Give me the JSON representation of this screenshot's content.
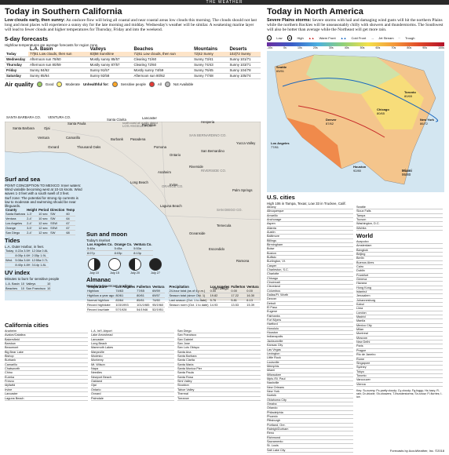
{
  "header": {
    "band": "THE WEATHER"
  },
  "socal": {
    "title": "Today in Southern California",
    "lead_bold": "Low clouds early, then sunny:",
    "lead": "An onshore flow will bring all coastal and near coastal areas low clouds this morning. The clouds should not last long and most places will experience a sunny sky for the late morning and midday. Wednesday's weather will be similar. A weakening marine layer will lead to fewer clouds and higher temperatures for Thursday, Friday and into the weekend."
  },
  "forecast": {
    "title": "5-day forecasts",
    "note": "High/low temperatures are average forecasts for region zone.",
    "columns": [
      "L.A. Basin",
      "Valleys",
      "Beaches",
      "Mountains",
      "Deserts"
    ],
    "today_values": [
      "77|61",
      "83|58",
      "71|61",
      "72|42",
      "102|72"
    ],
    "today_desc": [
      "Low clouds, then sun",
      "Sunshine",
      "Low clouds, then sun",
      "Sunny",
      "Sunny"
    ],
    "rows": [
      {
        "day": "Wednesday",
        "cells": [
          "Afternoon sun 78/60",
          "Mostly sunny 85/57",
          "Clearing 71/60",
          "Sunny 73/41",
          "Sunny 101/71"
        ]
      },
      {
        "day": "Thursday",
        "cells": [
          "Afternoon sun 80/59",
          "Mostly sunny 87/57",
          "Clearing 72/60",
          "Sunny 74/43",
          "Sunny 103/71"
        ]
      },
      {
        "day": "Friday",
        "cells": [
          "Sunny 84/62",
          "Sunny 91/57",
          "Mostly sunny 74/59",
          "Sunny 76/45",
          "Sunny 104/78"
        ]
      },
      {
        "day": "Saturday",
        "cells": [
          "Sunny 85/64",
          "Sunny 92/58",
          "Afternoon sun 80/62",
          "Sunny 77/48",
          "Sunny 105/74"
        ]
      }
    ]
  },
  "air": {
    "title": "Air quality",
    "legend": [
      "Good",
      "Moderate",
      "Unhealthful for:",
      "Sensitive people",
      "All",
      "Not Available"
    ],
    "source": "South Coast Air Quality Management District forecasts air quality"
  },
  "map_labels": [
    "SANTA BARBARA CO.",
    "VENTURA CO.",
    "LOS ANGELES CO.",
    "SAN BERNARDINO CO.",
    "RIVERSIDE CO.",
    "ORANGE CO.",
    "SAN DIEGO CO.",
    "Santa Barbara",
    "Ojai",
    "Santa Paula",
    "Ventura",
    "Oxnard",
    "Camarillo",
    "Thousand Oaks",
    "Santa Clarita",
    "Lancaster",
    "Palmdale",
    "Hesperia",
    "Burbank",
    "Pasadena",
    "Pomona",
    "Ontario",
    "San Bernardino",
    "Yucca Valley",
    "Riverside",
    "Palm Springs",
    "Long Beach",
    "Anaheim",
    "Irvine",
    "Laguna Beach",
    "Oceanside",
    "Escondido",
    "San Diego",
    "Ramona",
    "Temecula"
  ],
  "surf": {
    "title": "Surf and sea",
    "text": "POINT CONCEPTION TO MEXICO: Inner waters: Wind variable becoming west at 10-15 knots. Wind waves 1-3 feet with a south swell of 3 feet.",
    "temps_text": "Surf zone: The potential for strong rip currents is low to moderate and swimming should be near lifeguards.",
    "header": [
      "County",
      "Height",
      "Period",
      "Direction",
      "Temp"
    ],
    "rows": [
      [
        "Santa Barbara",
        "1-3'",
        "10 sec",
        "SW",
        "60"
      ],
      [
        "Ventura",
        "2-4'",
        "10 sec",
        "SW",
        "64"
      ],
      [
        "Los Angeles",
        "2-4'",
        "12 sec",
        "SSW",
        "67"
      ],
      [
        "Orange",
        "3-5'",
        "12 sec",
        "SSW",
        "67"
      ],
      [
        "San Diego",
        "2-4'",
        "12 sec",
        "SW",
        "68"
      ]
    ]
  },
  "tides": {
    "title": "Tides",
    "note": "L.A. Outer Harbor, in feet.",
    "rows": [
      [
        "Today",
        "4:22a 3.5H",
        "12:34a 0.8L"
      ],
      [
        "",
        "8:05p 4.6H",
        "2:35p 1.9L"
      ],
      [
        "Wed.",
        "5:08a 3.6H",
        "12:55a 0.7L"
      ],
      [
        "",
        "8:40p 4.8H",
        "3:14p 1.8L"
      ]
    ]
  },
  "uv": {
    "title": "UV index",
    "note": "Minutes to burn for sensitive people",
    "rows": [
      [
        "L.A. Basin",
        "10"
      ],
      [
        "Valleys",
        "10"
      ],
      [
        "Beaches",
        "10"
      ],
      [
        "San Francisco",
        "10"
      ]
    ]
  },
  "sunmoon": {
    "title": "Sun and moon",
    "today": "Today's rise/set",
    "cities": [
      "Los Angeles Co.",
      "Orange Co.",
      "Ventura Co."
    ],
    "sunrise": [
      "5:48a",
      "5:45a",
      "5:53a"
    ],
    "sunset": [
      "8:07p",
      "8:03p",
      "8:13p"
    ],
    "phases": [
      "July 10",
      "July 15",
      "July 20",
      "July 27"
    ]
  },
  "almanac": {
    "title": "Almanac",
    "note": "Monday's Downtown readings",
    "header": [
      "Temperature",
      "Los Angeles",
      "Fullerton",
      "Ventura"
    ],
    "rows": [
      [
        "High/low",
        "74/63",
        "77/65",
        "69/59"
      ],
      [
        "High/low a year ago",
        "80/61",
        "80/61",
        "69/57"
      ],
      [
        "Normal high/low",
        "83/64",
        "85/61",
        "74/60"
      ],
      [
        "Record high/date",
        "103/1993",
        "101/1985",
        "95/1960"
      ],
      [
        "Record low/date",
        "57/1928",
        "54/1946",
        "52/1951"
      ]
    ],
    "precip_header": [
      "Precipitation",
      "Los Angeles",
      "Fullerton",
      "Ventura"
    ],
    "precip_rows": [
      [
        "24-hour total (as of 4 p.m.)",
        "0.00",
        "0.00",
        "0.00"
      ],
      [
        "Season total (since Oct. 1)",
        "19.82",
        "17.22",
        "16.30"
      ],
      [
        "Last season (Oct. 1 to date)",
        "5.76",
        "5.81",
        "6.13"
      ],
      [
        "Season norm (Oct. 1 to date)",
        "14.93",
        "13.53",
        "15.39"
      ]
    ]
  },
  "ca_cities": {
    "title": "California cities",
    "header": [
      "City",
      "Monday Hi Lo Prcp.",
      "Today Hi Lo",
      "Wed. Hi Lo"
    ],
    "col1": [
      "Anaheim",
      "Avalon/Catalina",
      "Bakersfield",
      "Barstow",
      "Beaumont",
      "Big Bear Lake",
      "Bishop",
      "Burbank",
      "Camarillo",
      "Chatsworth",
      "Chino",
      "Eureka",
      "Fresno",
      "Idyllwild",
      "Irvine",
      "Lancaster",
      "Laguna Beach"
    ],
    "col2": [
      "L.A. Int'l. Airport",
      "Lake Arrowhead",
      "Lancaster",
      "Long Beach",
      "Mammoth Lakes",
      "Marysville",
      "Modesto",
      "Monterey",
      "Mt. Wilson",
      "Napa",
      "Needles",
      "Newport Beach",
      "Oakland",
      "Ojai",
      "Ontario",
      "Oxnard",
      "Palmdale"
    ],
    "col3": [
      "San Diego",
      "San Francisco",
      "San Gabriel",
      "San Jose",
      "San Luis Obispo",
      "Santa Ana",
      "Santa Barbara",
      "Santa Clarita",
      "Santa Maria",
      "Santa Monica Pier",
      "Santa Paula",
      "Santa Rosa",
      "Simi Valley",
      "Stockton",
      "Tahoe Valley",
      "Thermal",
      "Torrance"
    ]
  },
  "nation": {
    "title": "Today in North America",
    "lead_bold": "Severe Plains storms:",
    "lead": "Severe storms with hail and damaging wind gusts will hit the northern Plains while the northern Rockies will be unseasonably chilly with showers and thunderstorms. The Southwest will also be hotter than average while the Northeast will get more rain.",
    "legend": [
      "Low",
      "High",
      "Warm Front",
      "Cold Front",
      "Jet Stream",
      "Trough"
    ],
    "temp_scale": [
      "-10s",
      "0s",
      "10s",
      "20s",
      "30s",
      "40s",
      "50s",
      "60s",
      "70s",
      "80s",
      "90s",
      "100s"
    ],
    "map_cities": [
      {
        "name": "Seattle",
        "temps": "65/51"
      },
      {
        "name": "Los Angeles",
        "temps": "77/61"
      },
      {
        "name": "Houston",
        "temps": "92/80"
      },
      {
        "name": "Miami",
        "temps": "95/80"
      },
      {
        "name": "Chicago",
        "temps": "80/65"
      },
      {
        "name": "Toronto",
        "temps": "80/65"
      },
      {
        "name": "New York",
        "temps": "86/72"
      },
      {
        "name": "Denver",
        "temps": "87/62"
      }
    ]
  },
  "us_cities": {
    "title": "U.S. cities",
    "note": "High 106 in Tampa, Texas; Low 33 in Truckee, Calif.",
    "header": [
      "City",
      "Monday Hi Lo Prcp.",
      "Today Hi Lo Sky",
      "Wed. Hi Lo Sky"
    ],
    "col1": [
      "Albany",
      "Albuquerque",
      "Amarillo",
      "Anchorage",
      "Aspen",
      "Atlanta",
      "Austin",
      "Baltimore",
      "Billings",
      "Birmingham",
      "Boise",
      "Boston",
      "Buffalo",
      "Burlington, Vt.",
      "Casper",
      "Charleston, S.C.",
      "Charlotte",
      "Chicago",
      "Cincinnati",
      "Cleveland",
      "Columbus",
      "Dallas/Ft. Worth",
      "Denver",
      "Detroit",
      "El Paso",
      "Eugene",
      "Fairbanks",
      "Fort Myers",
      "Hartford",
      "Honolulu",
      "Houston",
      "Indianapolis",
      "Jacksonville",
      "Kansas City",
      "Las Vegas",
      "Lexington",
      "Little Rock",
      "Louisville",
      "Memphis",
      "Miami",
      "Milwaukee",
      "Mpls./St. Paul",
      "Nashville",
      "New Orleans",
      "New York",
      "Norfolk",
      "Oklahoma City",
      "Omaha",
      "Orlando",
      "Philadelphia",
      "Phoenix",
      "Pittsburgh",
      "Portland, Ore.",
      "Raleigh/Durham",
      "Reno",
      "Richmond",
      "Sacramento",
      "St. Louis",
      "Salt Lake City"
    ],
    "col2": [
      "Seattle",
      "Sioux Falls",
      "Tampa",
      "Tucson",
      "Washington, D.C.",
      "Wichita"
    ],
    "world_title": "World",
    "world": [
      "Acapulco",
      "Amsterdam",
      "Bangkok",
      "Beijing",
      "Berlin",
      "Buenos Aires",
      "Cairo",
      "Dublin",
      "Frankfurt",
      "Geneva",
      "Havana",
      "Hong Kong",
      "Istanbul",
      "Jerusalem",
      "Johannesburg",
      "Kabul",
      "Lima",
      "London",
      "Madrid",
      "Manila",
      "Mexico City",
      "Milan",
      "Montreal",
      "Moscow",
      "New Delhi",
      "Paris",
      "Prague",
      "Rio de Janeiro",
      "Rome",
      "Singapore",
      "Sydney",
      "Tokyo",
      "Toronto",
      "Vancouver",
      "Vienna"
    ],
    "key": "Key: Su-sunny; Pc-partly cloudy; Cy-cloudy; Fg-foggy; Hz-hazy; R-rain; Dr-drizzle; Sh-showers; T-thunderstorms; Sn-snow; Fl-flurries; I-ice.",
    "source": "Forecasts by AccuWeather, Inc. ©2018"
  }
}
